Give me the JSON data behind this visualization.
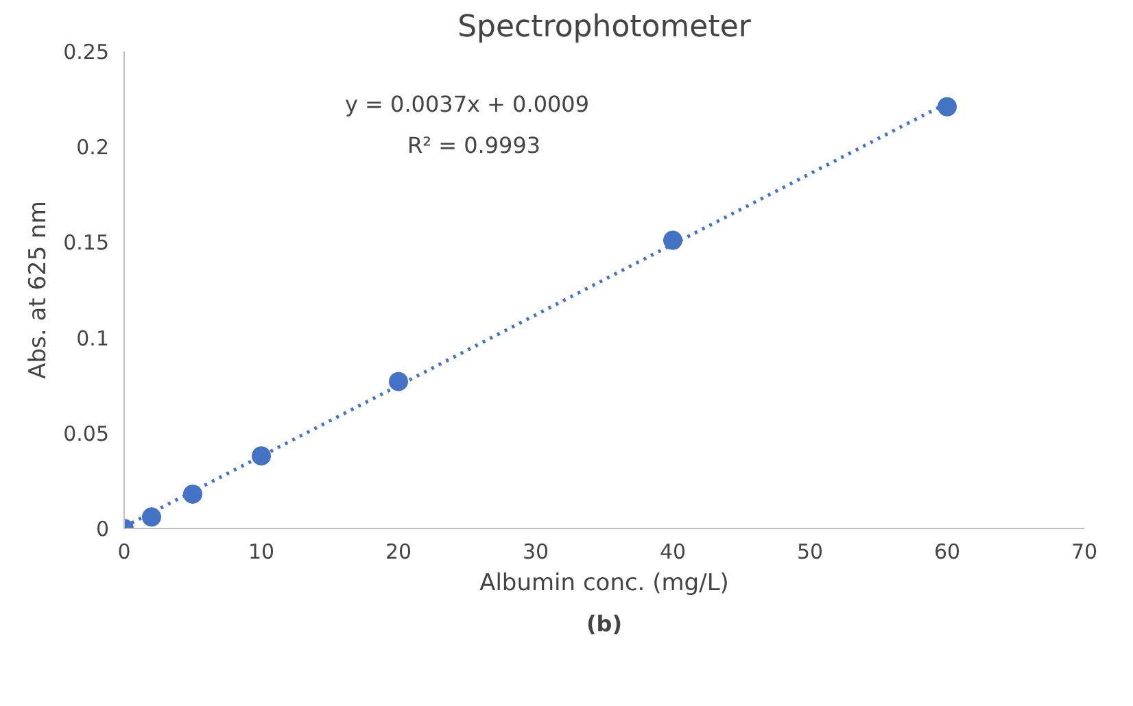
{
  "chart_data": {
    "type": "scatter",
    "title": "Spectrophotometer",
    "xlabel": "Albumin conc. (mg/L)",
    "ylabel": "Abs. at 625 nm",
    "xlim": [
      0,
      70
    ],
    "xticks": [
      0,
      10,
      20,
      30,
      40,
      50,
      60,
      70
    ],
    "ylim": [
      0,
      0.25
    ],
    "yticks": [
      0,
      0.05,
      0.1,
      0.15,
      0.2,
      0.25
    ],
    "grid": false,
    "marker": "circle",
    "series": [
      {
        "color": "#4472c4",
        "x": [
          0,
          2,
          5,
          10,
          20,
          40,
          60
        ],
        "values": [
          0,
          0.006,
          0.018,
          0.038,
          0.077,
          0.151,
          0.221
        ]
      },
      {
        "type": "line",
        "line_style": "dotted",
        "marker": "none",
        "color": "#4472c4",
        "x": [
          0,
          60
        ],
        "values": [
          0.0009,
          0.2229
        ]
      }
    ],
    "annotations": [
      "y = 0.0037x + 0.0009",
      "R² = 0.9993",
      "(b)"
    ]
  }
}
